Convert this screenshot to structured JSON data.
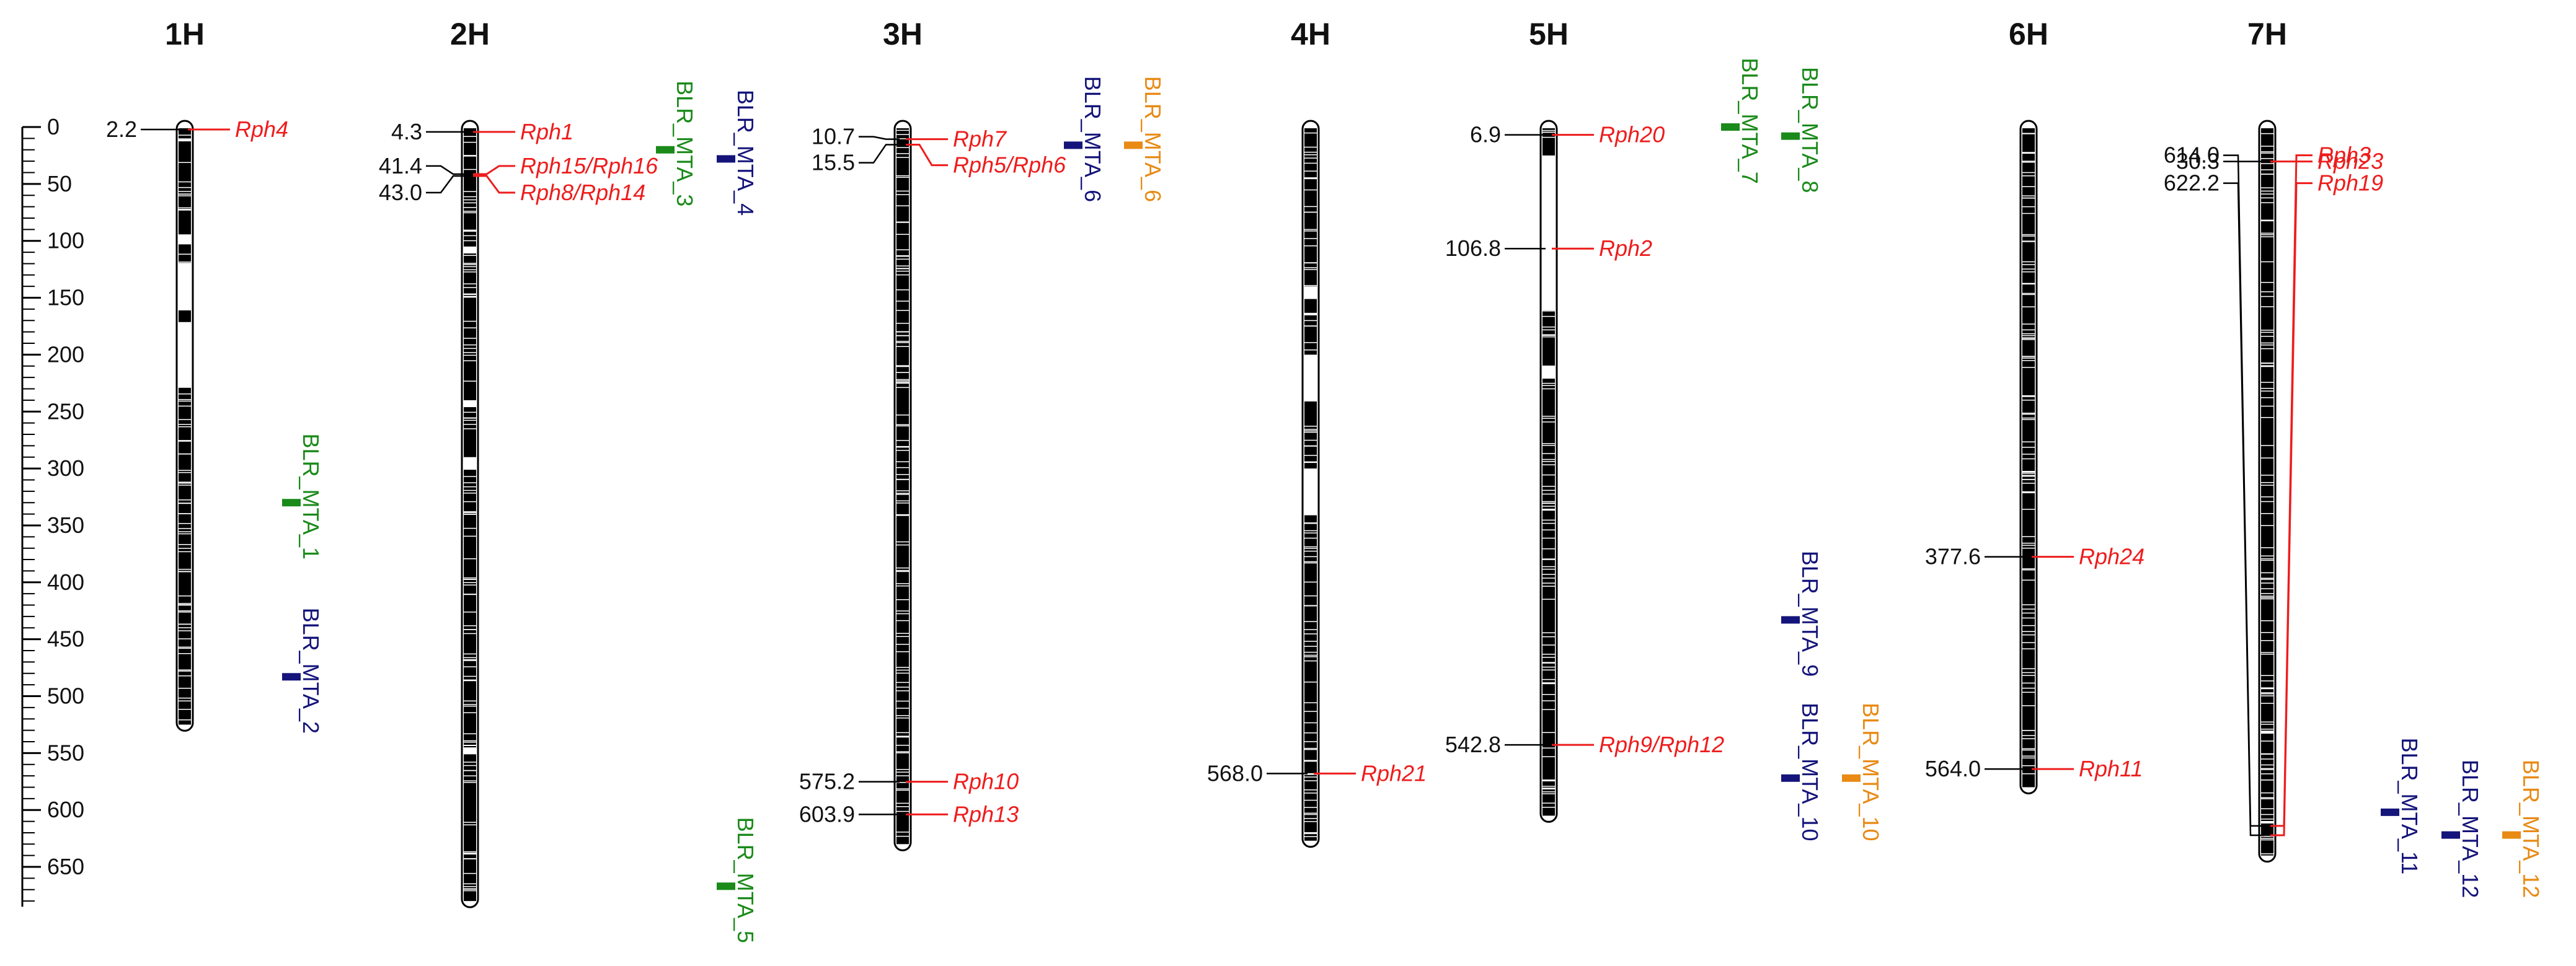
{
  "figure": {
    "axis": {
      "min": 0,
      "max": 675,
      "major_step": 50,
      "minor_step": 10,
      "tick_labels": [
        "0",
        "50",
        "100",
        "150",
        "200",
        "250",
        "300",
        "350",
        "400",
        "450",
        "500",
        "550",
        "600",
        "650"
      ]
    },
    "colors": {
      "gene": "#ee1c1c",
      "mta_green": "#1a8a1a",
      "mta_blue": "#14147a",
      "mta_orange": "#e88a14",
      "chromosome": "#000000",
      "leader": "#000000"
    }
  },
  "chromosomes": [
    {
      "id": "1H",
      "name": "1H",
      "length": 525,
      "bands": [
        [
          0,
          10
        ],
        [
          10,
          72
        ],
        [
          72,
          95
        ],
        [
          102,
          120
        ],
        [
          160,
          172
        ],
        [
          228,
          275
        ],
        [
          275,
          330
        ],
        [
          330,
          390
        ],
        [
          390,
          525
        ]
      ],
      "genes": [
        {
          "pos": 2.2,
          "pos_label": "2.2",
          "name": "Rph4"
        }
      ],
      "mtas": [
        {
          "name": "BLR_MTA_1",
          "pos": 330,
          "color": "green"
        },
        {
          "name": "BLR_MTA_2",
          "pos": 483,
          "color": "blue"
        }
      ]
    },
    {
      "id": "2H",
      "name": "2H",
      "length": 680,
      "bands": [
        [
          0,
          105
        ],
        [
          110,
          240
        ],
        [
          245,
          290
        ],
        [
          300,
          410
        ],
        [
          410,
          545
        ],
        [
          550,
          680
        ]
      ],
      "genes": [
        {
          "pos": 4.3,
          "pos_label": "4.3",
          "name": "Rph1"
        },
        {
          "pos": 41.4,
          "pos_label": "41.4",
          "name": "Rph15/Rph16"
        },
        {
          "pos": 43.0,
          "pos_label": "43.0",
          "name": "Rph8/Rph14"
        }
      ],
      "mtas": [
        {
          "name": "BLR_MTA_3",
          "pos": 20,
          "color": "green"
        },
        {
          "name": "BLR_MTA_4",
          "pos": 28,
          "color": "blue"
        },
        {
          "name": "BLR_MTA_5",
          "pos": 667,
          "color": "green"
        }
      ]
    },
    {
      "id": "3H",
      "name": "3H",
      "length": 630,
      "bands": [
        [
          0,
          630
        ]
      ],
      "genes": [
        {
          "pos": 10.7,
          "pos_label": "10.7",
          "name": "Rph7"
        },
        {
          "pos": 15.5,
          "pos_label": "15.5",
          "name": "Rph5/Rph6"
        },
        {
          "pos": 575.2,
          "pos_label": "575.2",
          "name": "Rph10"
        },
        {
          "pos": 603.9,
          "pos_label": "603.9",
          "name": "Rph13"
        }
      ],
      "mtas": [
        {
          "name": "BLR_MTA_6",
          "pos": 16,
          "color": "blue"
        },
        {
          "name": "BLR_MTA_6",
          "pos": 16,
          "color": "orange"
        }
      ]
    },
    {
      "id": "4H",
      "name": "4H",
      "length": 627,
      "bands": [
        [
          0,
          140
        ],
        [
          150,
          200
        ],
        [
          240,
          300
        ],
        [
          340,
          420
        ],
        [
          420,
          627
        ]
      ],
      "genes": [
        {
          "pos": 568.0,
          "pos_label": "568.0",
          "name": "Rph21"
        }
      ],
      "mtas": []
    },
    {
      "id": "5H",
      "name": "5H",
      "length": 605,
      "bands": [
        [
          0,
          25
        ],
        [
          160,
          210
        ],
        [
          220,
          330
        ],
        [
          330,
          470
        ],
        [
          470,
          605
        ]
      ],
      "genes": [
        {
          "pos": 6.9,
          "pos_label": "6.9",
          "name": "Rph20"
        },
        {
          "pos": 106.8,
          "pos_label": "106.8",
          "name": "Rph2"
        },
        {
          "pos": 542.8,
          "pos_label": "542.8",
          "name": "Rph9/Rph12"
        }
      ],
      "mtas": [
        {
          "name": "BLR_MTA_7",
          "pos": 0,
          "color": "green"
        },
        {
          "name": "BLR_MTA_8",
          "pos": 8,
          "color": "green"
        },
        {
          "name": "BLR_MTA_9",
          "pos": 433,
          "color": "blue"
        },
        {
          "name": "BLR_MTA_10",
          "pos": 572,
          "color": "blue"
        },
        {
          "name": "BLR_MTA_10",
          "pos": 572,
          "color": "orange"
        }
      ]
    },
    {
      "id": "6H",
      "name": "6H",
      "length": 580,
      "bands": [
        [
          0,
          580
        ]
      ],
      "genes": [
        {
          "pos": 377.6,
          "pos_label": "377.6",
          "name": "Rph24"
        },
        {
          "pos": 564.0,
          "pos_label": "564.0",
          "name": "Rph11"
        }
      ],
      "mtas": []
    },
    {
      "id": "7H",
      "name": "7H",
      "length": 640,
      "bands": [
        [
          0,
          640
        ]
      ],
      "genes": [
        {
          "pos": 30.3,
          "pos_label": "30.3",
          "name": "Rph23"
        },
        {
          "pos": 614.0,
          "pos_label": "614.0",
          "name": "Rph3"
        },
        {
          "pos": 622.2,
          "pos_label": "622.2",
          "name": "Rph19"
        }
      ],
      "mtas": [
        {
          "name": "BLR_MTA_11",
          "pos": 602,
          "color": "blue"
        },
        {
          "name": "BLR_MTA_12",
          "pos": 622,
          "color": "blue"
        },
        {
          "name": "BLR_MTA_12",
          "pos": 622,
          "color": "orange"
        }
      ]
    }
  ]
}
